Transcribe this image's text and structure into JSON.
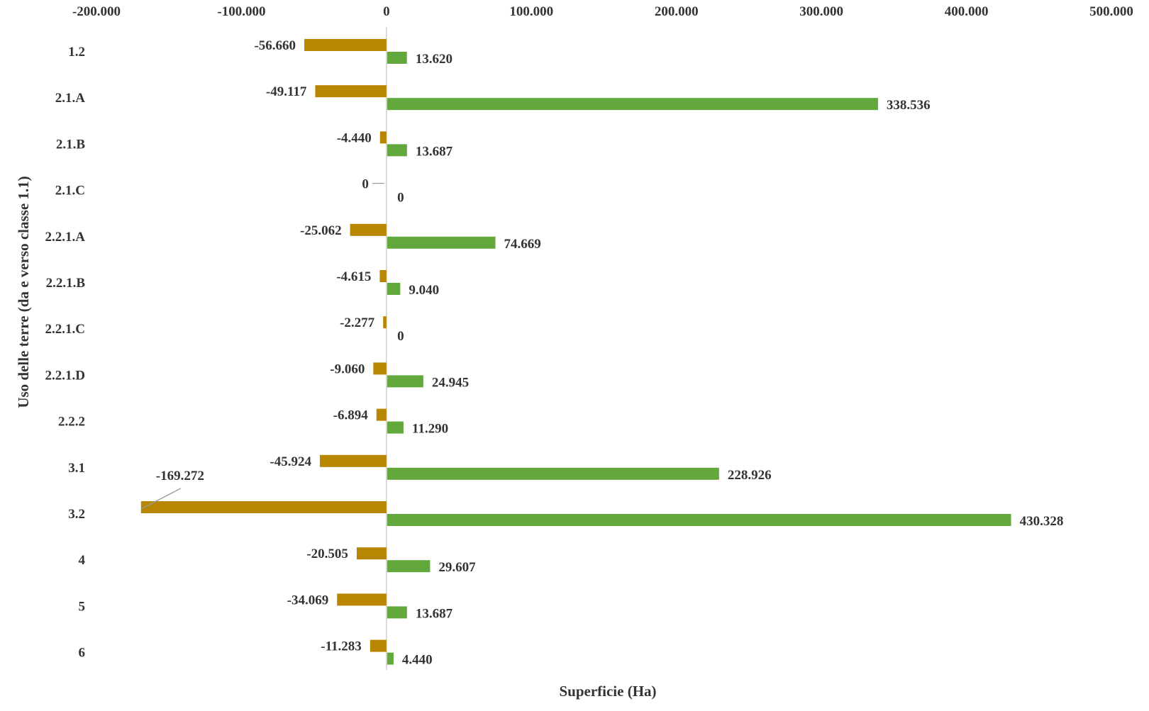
{
  "chart_data": {
    "type": "bar",
    "orientation": "horizontal",
    "title": "",
    "xlabel": "Superficie (Ha)",
    "ylabel": "Uso delle terre (da e verso classe 1.1)",
    "xlim": [
      -200000,
      500000
    ],
    "x_ticks": [
      -200000,
      -100000,
      0,
      100000,
      200000,
      300000,
      400000,
      500000
    ],
    "x_tick_labels": [
      "-200.000",
      "-100.000",
      "0",
      "100.000",
      "200.000",
      "300.000",
      "400.000",
      "500.000"
    ],
    "categories": [
      "1.2",
      "2.1.A",
      "2.1.B",
      "2.1.C",
      "2.2.1.A",
      "2.2.1.B",
      "2.2.1.C",
      "2.2.1.D",
      "2.2.2",
      "3.1",
      "3.2",
      "4",
      "5",
      "6"
    ],
    "series": [
      {
        "name": "loss",
        "color": "#b88600",
        "values": [
          -56660,
          -49117,
          -4440,
          0,
          -25062,
          -4615,
          -2277,
          -9060,
          -6894,
          -45924,
          -169272,
          -20505,
          -34069,
          -11283
        ],
        "labels": [
          "-56.660",
          "-49.117",
          "-4.440",
          "0",
          "-25.062",
          "-4.615",
          "-2.277",
          "-9.060",
          "-6.894",
          "-45.924",
          "-169.272",
          "-20.505",
          "-34.069",
          "-11.283"
        ]
      },
      {
        "name": "gain",
        "color": "#62a83c",
        "values": [
          13620,
          338536,
          13687,
          0,
          74669,
          9040,
          0,
          24945,
          11290,
          228926,
          430328,
          29607,
          13687,
          4440
        ],
        "labels": [
          "13.620",
          "338.536",
          "13.687",
          "0",
          "74.669",
          "9.040",
          "0",
          "24.945",
          "11.290",
          "228.926",
          "430.328",
          "29.607",
          "13.687",
          "4.440"
        ]
      }
    ],
    "grid": false,
    "legend": "none"
  }
}
